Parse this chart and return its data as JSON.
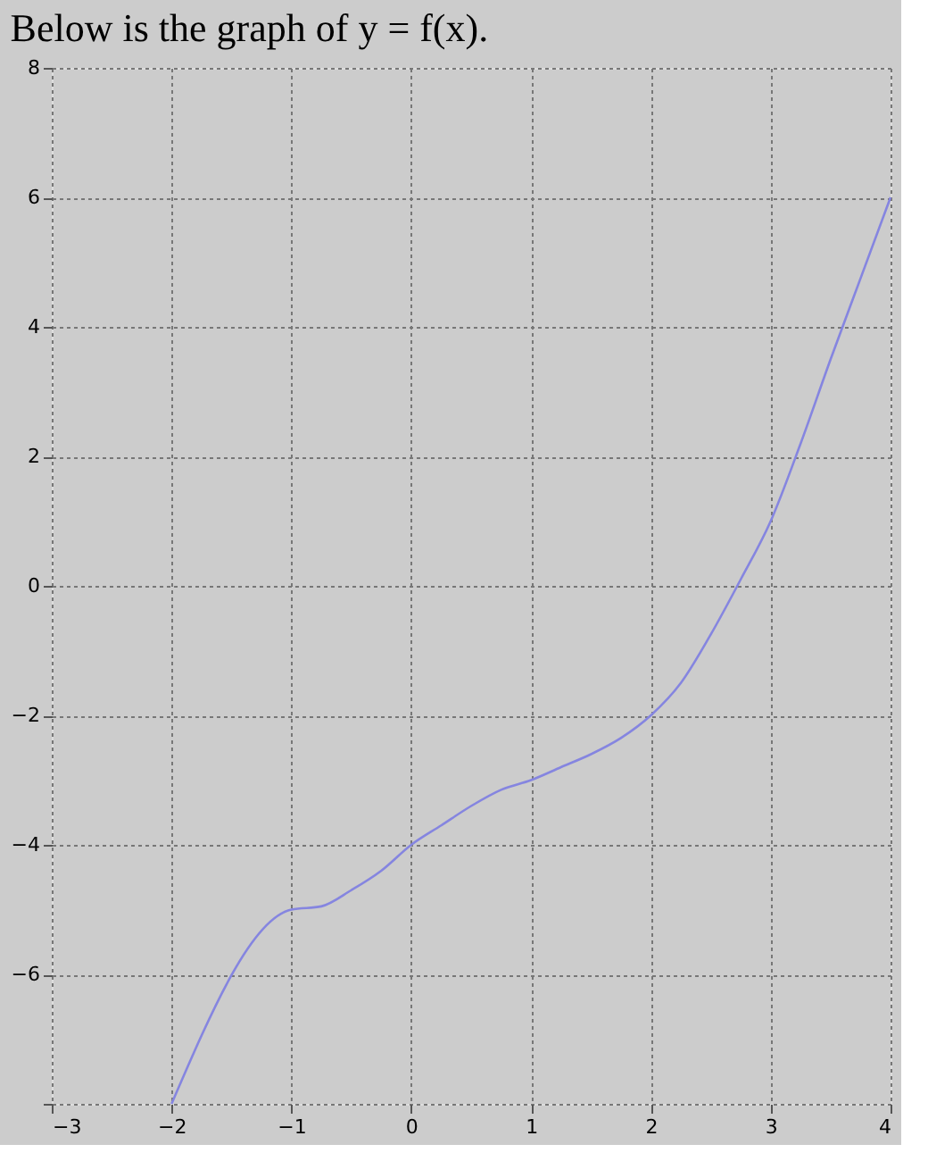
{
  "chart_data": {
    "type": "line",
    "title": "Below is the graph of y = f(x).",
    "x": [
      -2,
      -1,
      -0.75,
      -0.5,
      -0.25,
      0,
      0.25,
      0.5,
      0.75,
      1,
      1.25,
      1.5,
      1.75,
      2,
      2.25,
      2.5,
      2.75,
      3,
      3.25,
      3.5,
      3.75,
      4
    ],
    "series": [
      {
        "color": "#8585e0",
        "values": [
          -8,
          -5,
          -4.95,
          -4.7,
          -4.4,
          -4,
          -3.7,
          -3.4,
          -3.15,
          -3,
          -2.8,
          -2.6,
          -2.35,
          -2,
          -1.5,
          -0.75,
          0.1,
          1,
          2.2,
          3.5,
          4.75,
          6
        ]
      }
    ],
    "xlim": [
      -3,
      4
    ],
    "xticks": [
      -3,
      -2,
      -1,
      0,
      1,
      2,
      3,
      4
    ],
    "ylim": [
      -8,
      8
    ],
    "yticks": [
      {
        "value": -8,
        "label": null
      },
      -6,
      -4,
      -2,
      0,
      2,
      4,
      6,
      8
    ],
    "grid": true,
    "marker": "none",
    "line_style": "solid",
    "legend": false
  }
}
